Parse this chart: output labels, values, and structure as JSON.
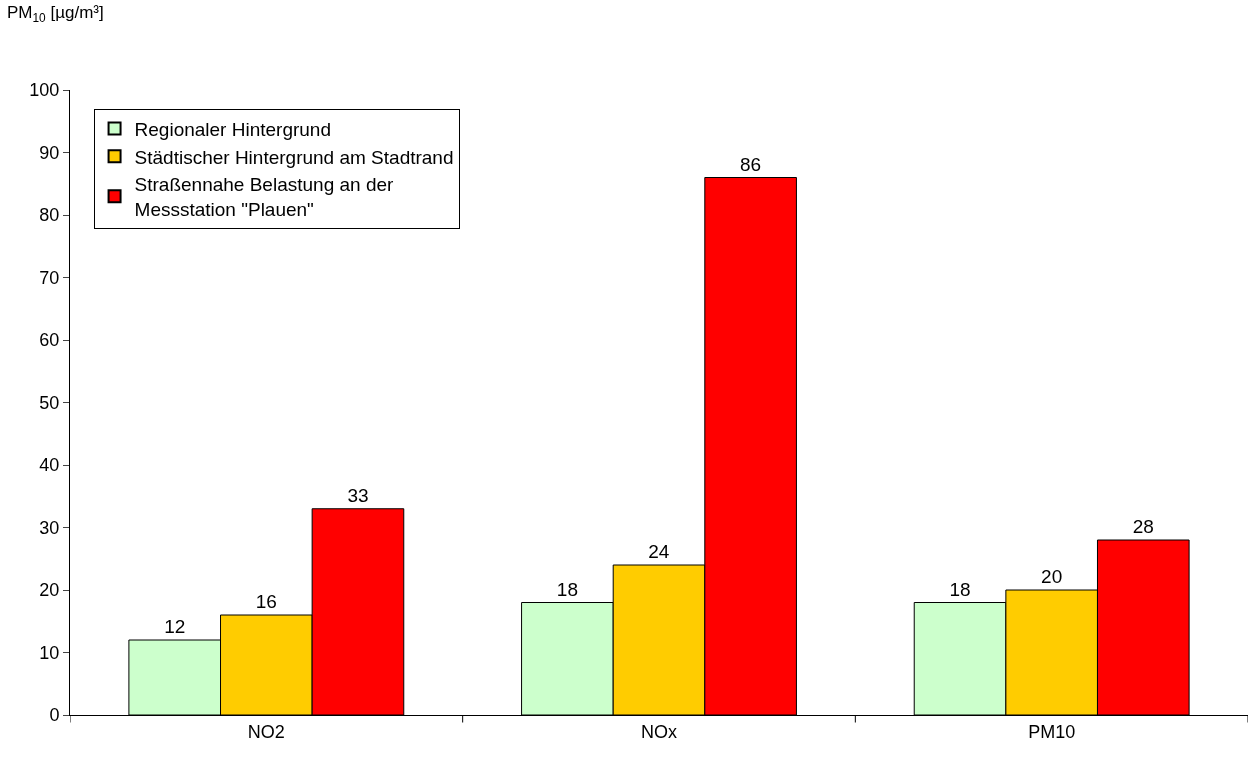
{
  "chart_data": {
    "type": "bar",
    "ylabel": "PM$_{10}$ [µg/m³]",
    "categories": [
      "NO2",
      "NOx",
      "PM10"
    ],
    "series": [
      {
        "name": "Regionaler Hintergrund",
        "color": "#ccffcc",
        "values": [
          12,
          18,
          18
        ]
      },
      {
        "name": "Städtischer Hintergrund am Stadtrand",
        "color": "#ffcc00",
        "values": [
          16,
          24,
          20
        ]
      },
      {
        "name": "Straßennahe Belastung an der\nMessstation \"Plauen\"",
        "color": "#ff0000",
        "values": [
          33,
          86,
          28
        ]
      }
    ],
    "ylim": [
      0,
      100
    ],
    "yticks": [
      0,
      10,
      20,
      30,
      40,
      50,
      60,
      70,
      80,
      90,
      100
    ],
    "data_labels": true,
    "grid": false,
    "legend": "top left"
  }
}
